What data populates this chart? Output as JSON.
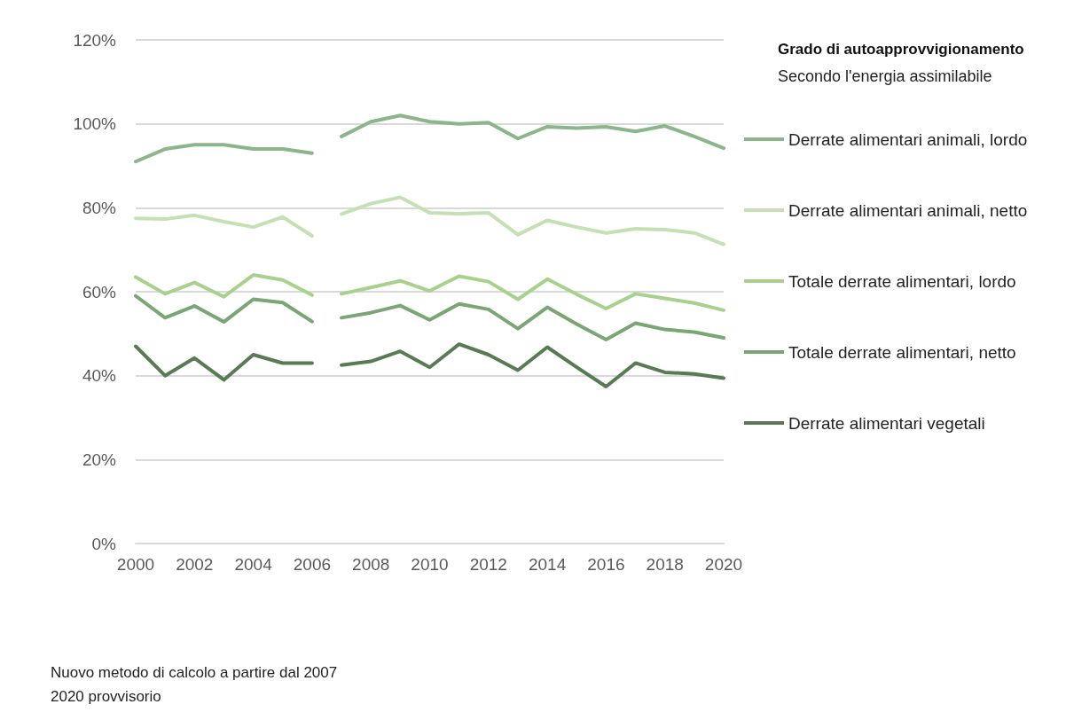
{
  "chart_data": {
    "type": "line",
    "title": "Grado di autoapprovvigionamento",
    "subtitle": "Secondo l'energia assimilabile",
    "annotations": [
      "Nuovo metodo di calcolo a partire dal 2007",
      "2020 provvisorio"
    ],
    "x": [
      2000,
      2001,
      2002,
      2003,
      2004,
      2005,
      2006,
      2006.5,
      2007,
      2008,
      2009,
      2010,
      2011,
      2012,
      2013,
      2014,
      2015,
      2016,
      2017,
      2018,
      2019,
      2020
    ],
    "series": [
      {
        "name": "Derrate alimentari animali, lordo",
        "color": "#8db58b",
        "values": [
          91,
          94,
          95,
          95,
          94,
          94,
          93,
          null,
          97,
          100.5,
          102,
          100.5,
          100,
          100.3,
          96.5,
          99.3,
          99,
          99.3,
          98.2,
          99.5,
          97,
          94.2
        ]
      },
      {
        "name": "Derrate alimentari animali, netto",
        "color": "#c5e0b4",
        "values": [
          77.5,
          77.3,
          78.2,
          76.7,
          75.4,
          77.8,
          73.3,
          null,
          78.5,
          81,
          82.5,
          78.8,
          78.6,
          78.8,
          73.6,
          77,
          75.4,
          74,
          75,
          74.8,
          74,
          71.3
        ]
      },
      {
        "name": "Totale derrate alimentari, lordo",
        "color": "#a9d18e",
        "values": [
          63.5,
          59.5,
          62.2,
          58.8,
          64,
          62.8,
          59.2,
          null,
          59.5,
          61,
          62.6,
          60.2,
          63.7,
          62.4,
          58.2,
          63,
          59.4,
          56,
          59.5,
          58.4,
          57.3,
          55.6
        ]
      },
      {
        "name": "Totale derrate alimentari, netto",
        "color": "#7aa574",
        "values": [
          59,
          53.8,
          56.6,
          52.8,
          58.2,
          57.4,
          52.9,
          null,
          53.8,
          55,
          56.7,
          53.3,
          57.1,
          55.8,
          51.2,
          56.3,
          52.3,
          48.6,
          52.5,
          51,
          50.4,
          49
        ]
      },
      {
        "name": "Derrate alimentari vegetali",
        "color": "#5a7a56",
        "values": [
          47,
          40,
          44.2,
          39,
          45,
          43,
          43,
          null,
          42.5,
          43.4,
          45.8,
          42,
          47.5,
          45,
          41.3,
          46.8,
          42,
          37.4,
          43,
          40.8,
          40.4,
          39.4
        ]
      }
    ],
    "xlim": [
      2000,
      2020
    ],
    "xticks": [
      2000,
      2002,
      2004,
      2006,
      2008,
      2010,
      2012,
      2014,
      2016,
      2018,
      2020
    ],
    "ylim": [
      0,
      120
    ],
    "yticks": [
      {
        "value": 0,
        "label": "0%"
      },
      {
        "value": 20,
        "label": "20%"
      },
      {
        "value": 40,
        "label": "40%"
      },
      {
        "value": 60,
        "label": "60%"
      },
      {
        "value": 80,
        "label": "80%"
      },
      {
        "value": 100,
        "label": "100%"
      },
      {
        "value": 120,
        "label": "120%"
      }
    ],
    "grid": "y",
    "legend": "right",
    "marker": "none",
    "line_style": "solid"
  }
}
